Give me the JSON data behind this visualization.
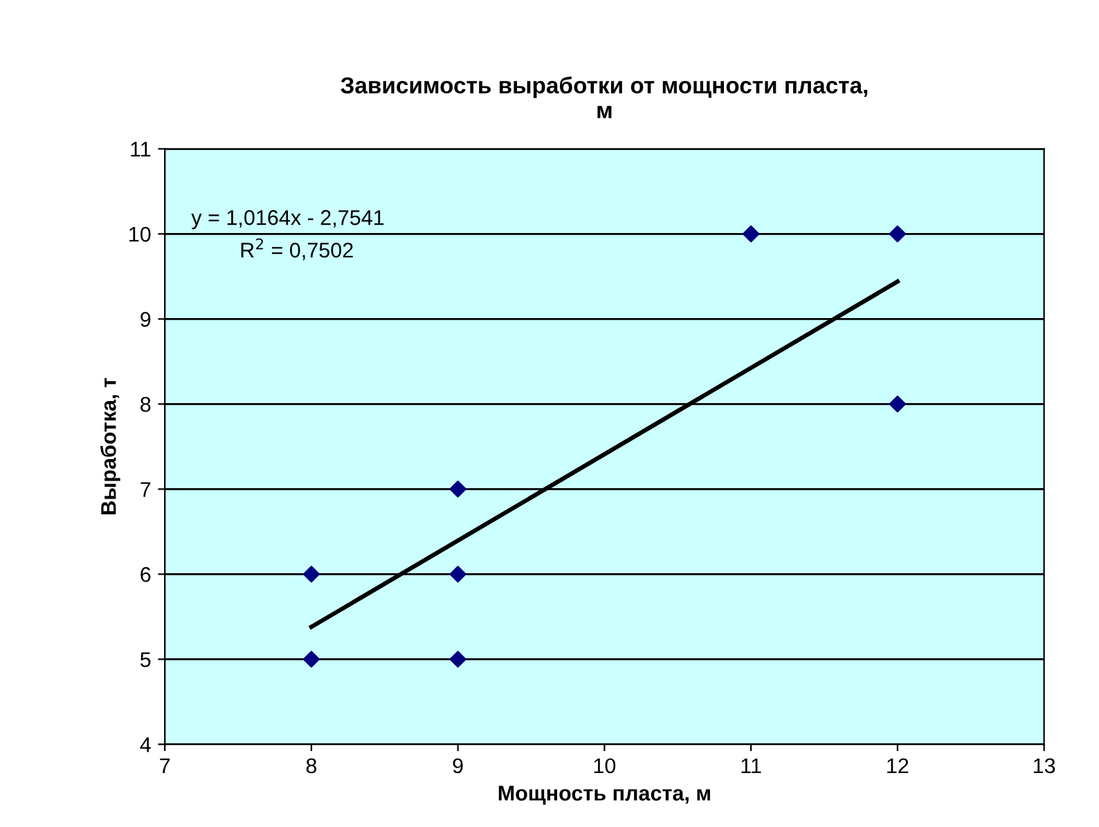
{
  "chart_data": {
    "type": "scatter",
    "title": "Зависимость выработки от мощности пласта,\nм",
    "xlabel": "Мощность пласта, м",
    "ylabel": "Выработка, т",
    "series": [
      {
        "color": "#000080",
        "marker": "diamond",
        "x": [
          8,
          8,
          9,
          9,
          9,
          11,
          12,
          12
        ],
        "values": [
          5,
          6,
          5,
          6,
          7,
          10,
          10,
          8
        ]
      },
      {
        "type": "line",
        "color": "#000000",
        "marker": "none",
        "line_style": "solid",
        "x": [
          8,
          12
        ],
        "values": [
          5.38,
          9.44
        ]
      }
    ],
    "annotations": [
      "y = 1,0164x - 2,7541",
      "R$^{2}$ = 0,7502"
    ],
    "xlim": [
      7,
      13
    ],
    "ylim": [
      4,
      11
    ],
    "xticks": [
      7,
      8,
      9,
      10,
      11,
      12,
      13
    ],
    "yticks": [
      4,
      5,
      6,
      7,
      8,
      9,
      10,
      11
    ],
    "grid": "y",
    "legend": false
  }
}
